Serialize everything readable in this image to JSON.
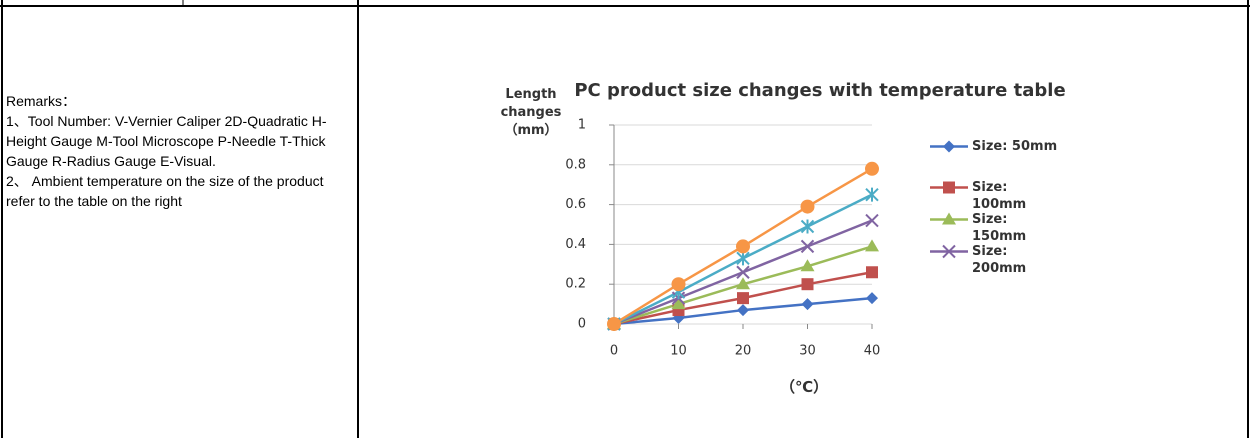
{
  "remarks": {
    "heading": "Remarks：",
    "lines": [
      "1、Tool Number: V-Vernier Caliper 2D-Quadratic H-Height Gauge M-Tool Microscope P-Needle T-Thick Gauge R-Radius Gauge E-Visual.",
      "2、 Ambient temperature on the size of the product refer to the table on the right"
    ]
  },
  "chart_data": {
    "type": "line",
    "title": "PC product size changes with temperature  table",
    "y_label": "Length changes （mm）",
    "x_label": "（℃）",
    "x": [
      0,
      10,
      20,
      30,
      40
    ],
    "xlim": [
      0,
      40
    ],
    "xticks": [
      0,
      10,
      20,
      30,
      40
    ],
    "ylim": [
      0,
      1
    ],
    "yticks": [
      0,
      0.2,
      0.4,
      0.6,
      0.8,
      1
    ],
    "grid": true,
    "series": [
      {
        "name": "Size:  50mm",
        "color": "#4472c4",
        "marker": "diamond",
        "values": [
          0,
          0.03,
          0.07,
          0.1,
          0.13
        ]
      },
      {
        "name": "Size: 100mm",
        "color": "#c0504d",
        "marker": "square",
        "values": [
          0,
          0.07,
          0.13,
          0.2,
          0.26
        ]
      },
      {
        "name": "Size: 150mm",
        "color": "#9bbb59",
        "marker": "triangle",
        "values": [
          0,
          0.1,
          0.2,
          0.29,
          0.39
        ]
      },
      {
        "name": "Size: 200mm",
        "color": "#8064a2",
        "marker": "x",
        "values": [
          0,
          0.13,
          0.26,
          0.39,
          0.52
        ]
      },
      {
        "color": "#4bacc6",
        "marker": "star",
        "values": [
          0,
          0.16,
          0.33,
          0.49,
          0.65
        ]
      },
      {
        "color": "#f79646",
        "marker": "circle",
        "values": [
          0,
          0.2,
          0.39,
          0.59,
          0.78
        ]
      }
    ]
  }
}
